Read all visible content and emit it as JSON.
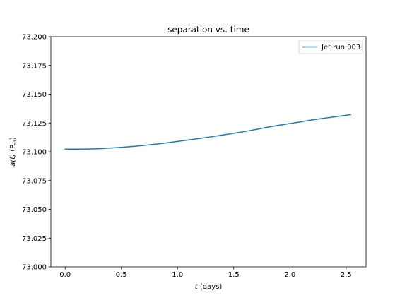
{
  "chart_data": {
    "type": "line",
    "title": "separation vs. time",
    "xlabel": {
      "var": "t",
      "rest": " (days)"
    },
    "ylabel": {
      "var": "a(t)",
      "rest": " (R",
      "sub": "⊙",
      "close": ")"
    },
    "xlim": [
      -0.127,
      2.677
    ],
    "ylim": [
      73.0,
      73.2
    ],
    "xticks": [
      0.0,
      0.5,
      1.0,
      1.5,
      2.0,
      2.5
    ],
    "xtick_labels": [
      "0.0",
      "0.5",
      "1.0",
      "1.5",
      "2.0",
      "2.5"
    ],
    "yticks": [
      73.0,
      73.025,
      73.05,
      73.075,
      73.1,
      73.125,
      73.15,
      73.175,
      73.2
    ],
    "ytick_labels": [
      "73.000",
      "73.025",
      "73.050",
      "73.075",
      "73.100",
      "73.125",
      "73.150",
      "73.175",
      "73.200"
    ],
    "grid": false,
    "legend_position": "top-right",
    "series": [
      {
        "name": "Jet run 003",
        "color": "#1f77b4",
        "x": [
          0.0,
          0.1,
          0.2,
          0.3,
          0.4,
          0.5,
          0.6,
          0.7,
          0.8,
          0.9,
          1.0,
          1.1,
          1.2,
          1.3,
          1.4,
          1.5,
          1.6,
          1.7,
          1.8,
          1.9,
          2.0,
          2.1,
          2.2,
          2.3,
          2.4,
          2.54
        ],
        "y": [
          73.1023,
          73.1023,
          73.1024,
          73.1027,
          73.1032,
          73.1038,
          73.1046,
          73.1055,
          73.1065,
          73.1077,
          73.109,
          73.1103,
          73.1116,
          73.113,
          73.1145,
          73.116,
          73.1176,
          73.1194,
          73.1213,
          73.123,
          73.1245,
          73.1261,
          73.1277,
          73.1291,
          73.1304,
          73.1322
        ]
      }
    ]
  }
}
